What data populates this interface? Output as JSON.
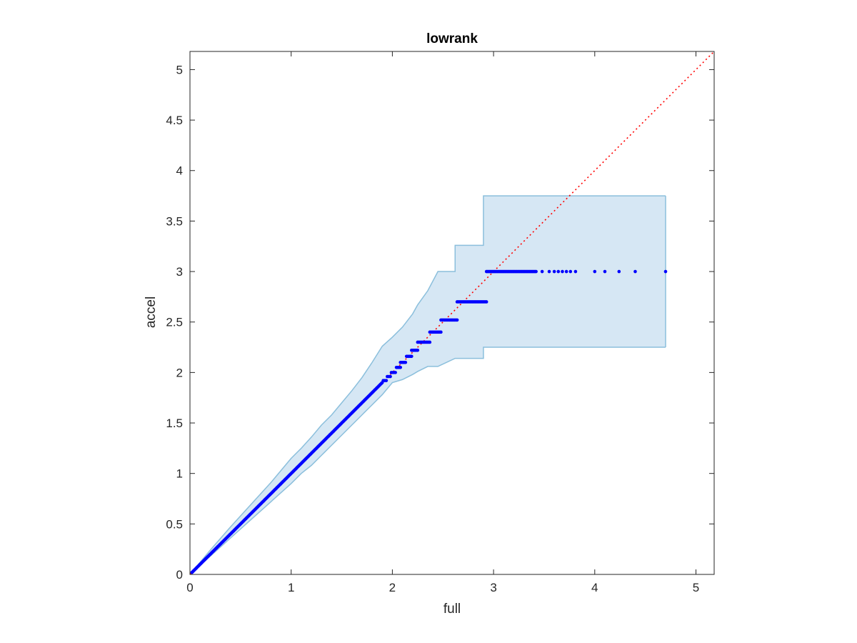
{
  "chart_data": {
    "type": "scatter",
    "title": "lowrank",
    "xlabel": "full",
    "ylabel": "accel",
    "xlim": [
      0,
      5.18
    ],
    "ylim": [
      0,
      5.18
    ],
    "xticks": [
      0,
      1,
      2,
      3,
      4,
      5
    ],
    "xtick_labels": [
      "0",
      "1",
      "2",
      "3",
      "4",
      "5"
    ],
    "yticks": [
      0,
      0.5,
      1,
      1.5,
      2,
      2.5,
      3,
      3.5,
      4,
      4.5,
      5
    ],
    "ytick_labels": [
      "0",
      "0.5",
      "1",
      "1.5",
      "2",
      "2.5",
      "3",
      "3.5",
      "4",
      "4.5",
      "5"
    ],
    "grid": false,
    "legend": "none",
    "colors": {
      "points": "#0000ff",
      "reference_line": "#ff0000",
      "band_fill": "#d6e7f4",
      "band_edge": "#8bbfdc",
      "axis": "#262626"
    },
    "band": {
      "x": [
        0.0,
        0.2,
        0.4,
        0.6,
        0.8,
        1.0,
        1.1,
        1.2,
        1.3,
        1.4,
        1.5,
        1.6,
        1.7,
        1.8,
        1.9,
        2.0,
        2.1,
        2.2,
        2.25,
        2.35,
        2.45,
        2.62,
        2.62,
        2.9,
        2.9,
        4.7
      ],
      "upper": [
        0.0,
        0.24,
        0.47,
        0.69,
        0.91,
        1.15,
        1.25,
        1.36,
        1.48,
        1.58,
        1.7,
        1.82,
        1.95,
        2.1,
        2.26,
        2.35,
        2.45,
        2.58,
        2.67,
        2.81,
        3.0,
        3.0,
        3.26,
        3.26,
        3.75,
        3.75
      ],
      "lower": [
        0.0,
        0.18,
        0.36,
        0.54,
        0.72,
        0.9,
        1.0,
        1.08,
        1.18,
        1.28,
        1.38,
        1.48,
        1.58,
        1.68,
        1.78,
        1.9,
        1.93,
        1.98,
        2.01,
        2.06,
        2.06,
        2.14,
        2.14,
        2.14,
        2.25,
        2.25
      ]
    },
    "reference_line": {
      "from": [
        0,
        0
      ],
      "to": [
        5.18,
        5.18
      ],
      "style": "dotted"
    },
    "series": [
      {
        "segments": [
          {
            "x_from": 0.02,
            "x_to": 1.9,
            "y_from": 0.02,
            "y_to": 1.9,
            "n": 220
          }
        ],
        "steps": [
          {
            "y": 1.92,
            "x_from": 1.91,
            "x_to": 1.94,
            "n": 3
          },
          {
            "y": 1.96,
            "x_from": 1.95,
            "x_to": 1.98,
            "n": 3
          },
          {
            "y": 2.0,
            "x_from": 1.99,
            "x_to": 2.03,
            "n": 4
          },
          {
            "y": 2.05,
            "x_from": 2.04,
            "x_to": 2.08,
            "n": 4
          },
          {
            "y": 2.1,
            "x_from": 2.08,
            "x_to": 2.13,
            "n": 5
          },
          {
            "y": 2.16,
            "x_from": 2.14,
            "x_to": 2.19,
            "n": 5
          },
          {
            "y": 2.22,
            "x_from": 2.19,
            "x_to": 2.25,
            "n": 6
          },
          {
            "y": 2.3,
            "x_from": 2.25,
            "x_to": 2.37,
            "n": 10
          },
          {
            "y": 2.4,
            "x_from": 2.37,
            "x_to": 2.48,
            "n": 9
          },
          {
            "y": 2.52,
            "x_from": 2.48,
            "x_to": 2.64,
            "n": 14
          },
          {
            "y": 2.7,
            "x_from": 2.64,
            "x_to": 2.93,
            "n": 24
          },
          {
            "y": 3.0,
            "x_from": 2.93,
            "x_to": 3.42,
            "n": 45
          }
        ],
        "points": [
          [
            3.48,
            3.0
          ],
          [
            3.55,
            3.0
          ],
          [
            3.6,
            3.0
          ],
          [
            3.64,
            3.0
          ],
          [
            3.68,
            3.0
          ],
          [
            3.72,
            3.0
          ],
          [
            3.76,
            3.0
          ],
          [
            3.81,
            3.0
          ],
          [
            4.0,
            3.0
          ],
          [
            4.1,
            3.0
          ],
          [
            4.24,
            3.0
          ],
          [
            4.4,
            3.0
          ],
          [
            4.7,
            3.0
          ]
        ]
      }
    ]
  }
}
